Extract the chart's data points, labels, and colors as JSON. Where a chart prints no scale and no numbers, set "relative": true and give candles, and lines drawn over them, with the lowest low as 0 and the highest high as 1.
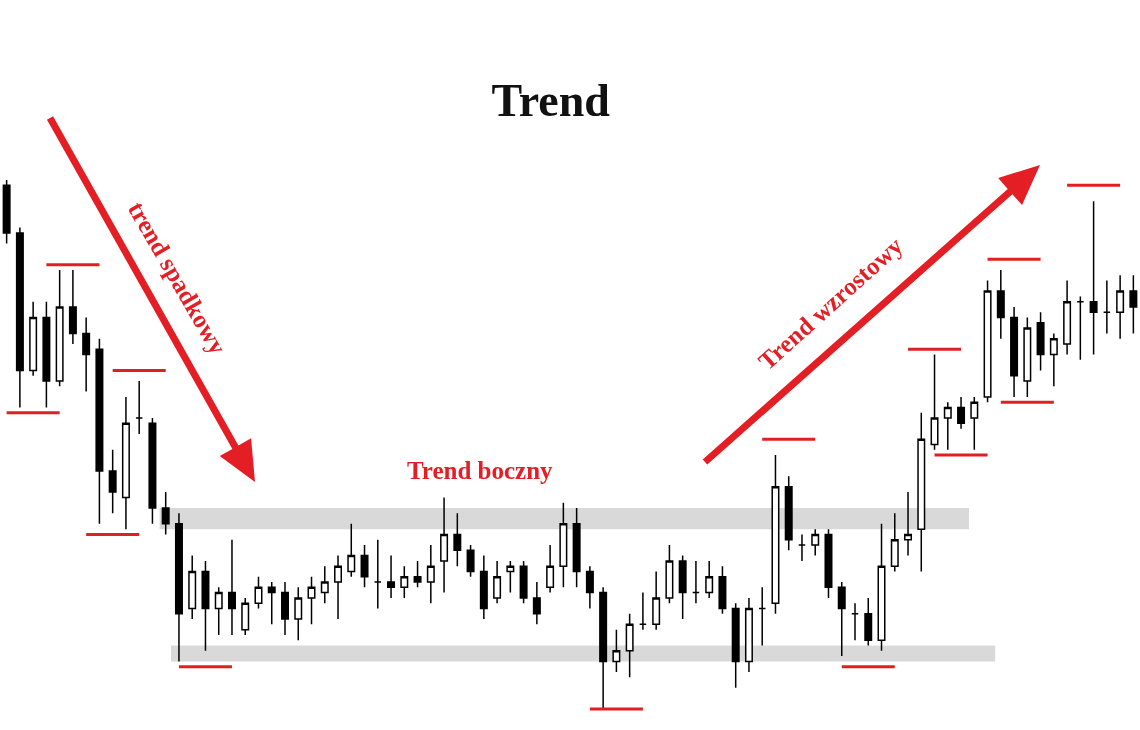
{
  "chart_data": {
    "type": "candlestick",
    "title": "Trend",
    "relative": true,
    "categories": [
      null,
      null,
      null,
      null,
      null,
      null,
      null,
      null,
      null,
      null,
      null,
      null,
      null,
      null,
      null,
      null,
      null,
      null,
      null,
      null,
      null,
      null,
      null,
      null,
      null,
      null,
      null,
      null,
      null,
      null,
      null,
      null,
      null,
      null,
      null,
      null,
      null,
      null,
      null,
      null,
      null,
      null,
      null,
      null,
      null,
      null,
      null,
      null,
      null,
      null,
      null,
      null,
      null,
      null,
      null,
      null,
      null,
      null,
      null,
      null,
      null,
      null,
      null,
      null,
      null,
      null,
      null,
      null,
      null,
      null,
      null,
      null,
      null,
      null,
      null,
      null,
      null,
      null,
      null,
      null,
      null,
      null,
      null,
      null,
      null,
      null
    ],
    "ohlc": [
      [
        0.99,
        1,
        0.88,
        0.9
      ],
      [
        0.9,
        0.91,
        0.57,
        0.64
      ],
      [
        0.64,
        0.77,
        0.63,
        0.74
      ],
      [
        0.74,
        0.77,
        0.57,
        0.62
      ],
      [
        0.62,
        0.83,
        0.61,
        0.76
      ],
      [
        0.76,
        0.83,
        0.69,
        0.71
      ],
      [
        0.71,
        0.74,
        0.6,
        0.67
      ],
      [
        0.68,
        0.7,
        0.35,
        0.45
      ],
      [
        0.45,
        0.49,
        0.37,
        0.41
      ],
      [
        0.4,
        0.59,
        0.34,
        0.54
      ],
      [
        0.55,
        0.62,
        0.52,
        0.55
      ],
      [
        0.54,
        0.55,
        0.35,
        0.38
      ],
      [
        0.38,
        0.41,
        0.33,
        0.35
      ],
      [
        0.35,
        0.37,
        0.09,
        0.18
      ],
      [
        0.19,
        0.29,
        0.17,
        0.26
      ],
      [
        0.26,
        0.28,
        0.11,
        0.19
      ],
      [
        0.19,
        0.23,
        0.14,
        0.22
      ],
      [
        0.22,
        0.32,
        0.14,
        0.19
      ],
      [
        0.15,
        0.21,
        0.14,
        0.2
      ],
      [
        0.2,
        0.25,
        0.19,
        0.23
      ],
      [
        0.23,
        0.24,
        0.16,
        0.22
      ],
      [
        0.22,
        0.24,
        0.14,
        0.17
      ],
      [
        0.17,
        0.23,
        0.13,
        0.21
      ],
      [
        0.21,
        0.25,
        0.16,
        0.23
      ],
      [
        0.22,
        0.27,
        0.2,
        0.24
      ],
      [
        0.24,
        0.29,
        0.17,
        0.27
      ],
      [
        0.26,
        0.35,
        0.25,
        0.29
      ],
      [
        0.29,
        0.31,
        0.23,
        0.25
      ],
      [
        0.24,
        0.32,
        0.19,
        0.24
      ],
      [
        0.24,
        0.29,
        0.21,
        0.23
      ],
      [
        0.23,
        0.27,
        0.21,
        0.25
      ],
      [
        0.25,
        0.28,
        0.23,
        0.24
      ],
      [
        0.24,
        0.31,
        0.2,
        0.27
      ],
      [
        0.28,
        0.4,
        0.22,
        0.33
      ],
      [
        0.33,
        0.37,
        0.27,
        0.3
      ],
      [
        0.3,
        0.31,
        0.25,
        0.26
      ],
      [
        0.26,
        0.29,
        0.17,
        0.19
      ],
      [
        0.21,
        0.28,
        0.2,
        0.25
      ],
      [
        0.26,
        0.28,
        0.22,
        0.27
      ],
      [
        0.27,
        0.28,
        0.2,
        0.21
      ],
      [
        0.21,
        0.24,
        0.16,
        0.18
      ],
      [
        0.23,
        0.31,
        0.22,
        0.27
      ],
      [
        0.27,
        0.39,
        0.23,
        0.35
      ],
      [
        0.35,
        0.38,
        0.23,
        0.26
      ],
      [
        0.26,
        0.27,
        0.19,
        0.22
      ],
      [
        0.22,
        0.23,
        0,
        0.09
      ],
      [
        0.09,
        0.15,
        0.07,
        0.11
      ],
      [
        0.11,
        0.18,
        0.06,
        0.16
      ],
      [
        0.16,
        0.22,
        0.15,
        0.16
      ],
      [
        0.16,
        0.26,
        0.15,
        0.21
      ],
      [
        0.21,
        0.31,
        0.2,
        0.28
      ],
      [
        0.28,
        0.29,
        0.17,
        0.22
      ],
      [
        0.22,
        0.28,
        0.2,
        0.22
      ],
      [
        0.22,
        0.28,
        0.21,
        0.25
      ],
      [
        0.25,
        0.27,
        0.18,
        0.19
      ],
      [
        0.19,
        0.2,
        0.04,
        0.09
      ],
      [
        0.09,
        0.21,
        0.07,
        0.19
      ],
      [
        0.19,
        0.23,
        0.12,
        0.19
      ],
      [
        0.2,
        0.48,
        0.18,
        0.42
      ],
      [
        0.42,
        0.44,
        0.3,
        0.32
      ],
      [
        0.31,
        0.33,
        0.28,
        0.31
      ],
      [
        0.31,
        0.34,
        0.29,
        0.33
      ],
      [
        0.33,
        0.34,
        0.21,
        0.23
      ],
      [
        0.23,
        0.24,
        0.1,
        0.19
      ],
      [
        0.18,
        0.2,
        0.13,
        0.18
      ],
      [
        0.18,
        0.21,
        0.12,
        0.13
      ],
      [
        0.13,
        0.35,
        0.11,
        0.27
      ],
      [
        0.27,
        0.37,
        0.26,
        0.32
      ],
      [
        0.32,
        0.41,
        0.29,
        0.33
      ],
      [
        0.34,
        0.56,
        0.26,
        0.51
      ],
      [
        0.5,
        0.67,
        0.49,
        0.55
      ],
      [
        0.55,
        0.58,
        0.49,
        0.57
      ],
      [
        0.57,
        0.59,
        0.53,
        0.54
      ],
      [
        0.55,
        0.59,
        0.49,
        0.58
      ],
      [
        0.59,
        0.81,
        0.58,
        0.79
      ],
      [
        0.79,
        0.83,
        0.7,
        0.74
      ],
      [
        0.74,
        0.76,
        0.59,
        0.63
      ],
      [
        0.62,
        0.74,
        0.59,
        0.72
      ],
      [
        0.73,
        0.75,
        0.64,
        0.67
      ],
      [
        0.67,
        0.71,
        0.61,
        0.7
      ],
      [
        0.69,
        0.81,
        0.67,
        0.77
      ],
      [
        0.77,
        0.78,
        0.66,
        0.77
      ],
      [
        0.77,
        0.96,
        0.67,
        0.75
      ],
      [
        0.75,
        0.81,
        0.71,
        0.75
      ],
      [
        0.75,
        0.82,
        0.7,
        0.79
      ],
      [
        0.79,
        0.82,
        0.71,
        0.76
      ]
    ],
    "series": [
      {
        "type": "line",
        "color": "#e02020",
        "values": [
          0.56,
          0.56,
          0.56,
          0.56,
          0.56,
          null,
          null,
          null,
          0.64,
          0.64,
          0.64,
          0.64,
          0.64,
          null,
          null,
          null,
          null,
          null,
          null,
          null,
          null,
          null,
          null,
          null,
          null,
          null,
          null,
          null,
          null,
          null,
          null,
          null,
          null,
          null,
          null,
          null,
          null,
          null,
          null,
          null,
          null,
          null,
          null,
          null,
          0,
          0,
          0,
          0,
          0,
          null,
          null,
          null,
          null,
          null,
          null,
          null,
          null,
          null,
          null,
          null,
          null,
          null,
          null,
          0.08,
          0.08,
          0.08,
          0.08,
          0.08,
          null,
          null,
          0.48,
          0.48,
          0.48,
          0.48,
          0.48,
          null,
          null,
          null,
          null,
          null,
          0.99,
          0.99,
          0.99,
          0.99,
          0.99,
          null
        ]
      },
      {
        "type": "line",
        "color": "#e02020",
        "values": [
          null,
          null,
          null,
          0.84,
          0.84,
          0.84,
          0.84,
          0.84,
          null,
          null,
          null,
          null,
          null,
          0.08,
          0.08,
          0.08,
          0.08,
          0.08,
          null,
          null,
          null,
          null,
          null,
          null,
          null,
          null,
          null,
          null,
          null,
          null,
          null,
          null,
          null,
          null,
          null,
          null,
          null,
          null,
          null,
          null,
          null,
          null,
          null,
          null,
          null,
          null,
          null,
          null,
          null,
          null,
          null,
          null,
          null,
          null,
          null,
          null,
          null,
          0.51,
          0.51,
          0.51,
          0.51,
          0.51,
          null,
          null,
          null,
          null,
          null,
          null,
          0.68,
          0.68,
          0.68,
          0.68,
          0.68,
          null,
          null,
          0.58,
          0.58,
          0.58,
          0.58,
          0.58,
          null,
          null,
          null,
          null,
          null,
          null
        ]
      },
      {
        "type": "line",
        "color": "#e02020",
        "values": [
          null,
          null,
          null,
          null,
          null,
          null,
          0.33,
          0.33,
          0.33,
          0.33,
          0.33,
          null,
          null,
          null,
          null,
          null,
          null,
          null,
          null,
          null,
          null,
          null,
          null,
          null,
          null,
          null,
          null,
          null,
          null,
          null,
          null,
          null,
          null,
          null,
          null,
          null,
          null,
          null,
          null,
          null,
          null,
          null,
          null,
          null,
          null,
          null,
          null,
          null,
          null,
          null,
          null,
          null,
          null,
          null,
          null,
          null,
          null,
          null,
          null,
          null,
          null,
          null,
          null,
          null,
          null,
          null,
          null,
          null,
          null,
          null,
          null,
          null,
          null,
          null,
          0.85,
          0.85,
          0.85,
          0.85,
          0.85,
          null,
          null,
          null,
          null,
          null,
          null,
          null
        ]
      }
    ],
    "bands": [
      {
        "axis": "y",
        "from": 0.34,
        "to": 0.38,
        "color": "#d9d9d9"
      },
      {
        "axis": "y",
        "from": 0.09,
        "to": 0.12,
        "color": "#d9d9d9"
      }
    ],
    "annotations": [
      "trend spadkowy",
      "Trend boczny",
      "Trend wzrostowy"
    ]
  }
}
